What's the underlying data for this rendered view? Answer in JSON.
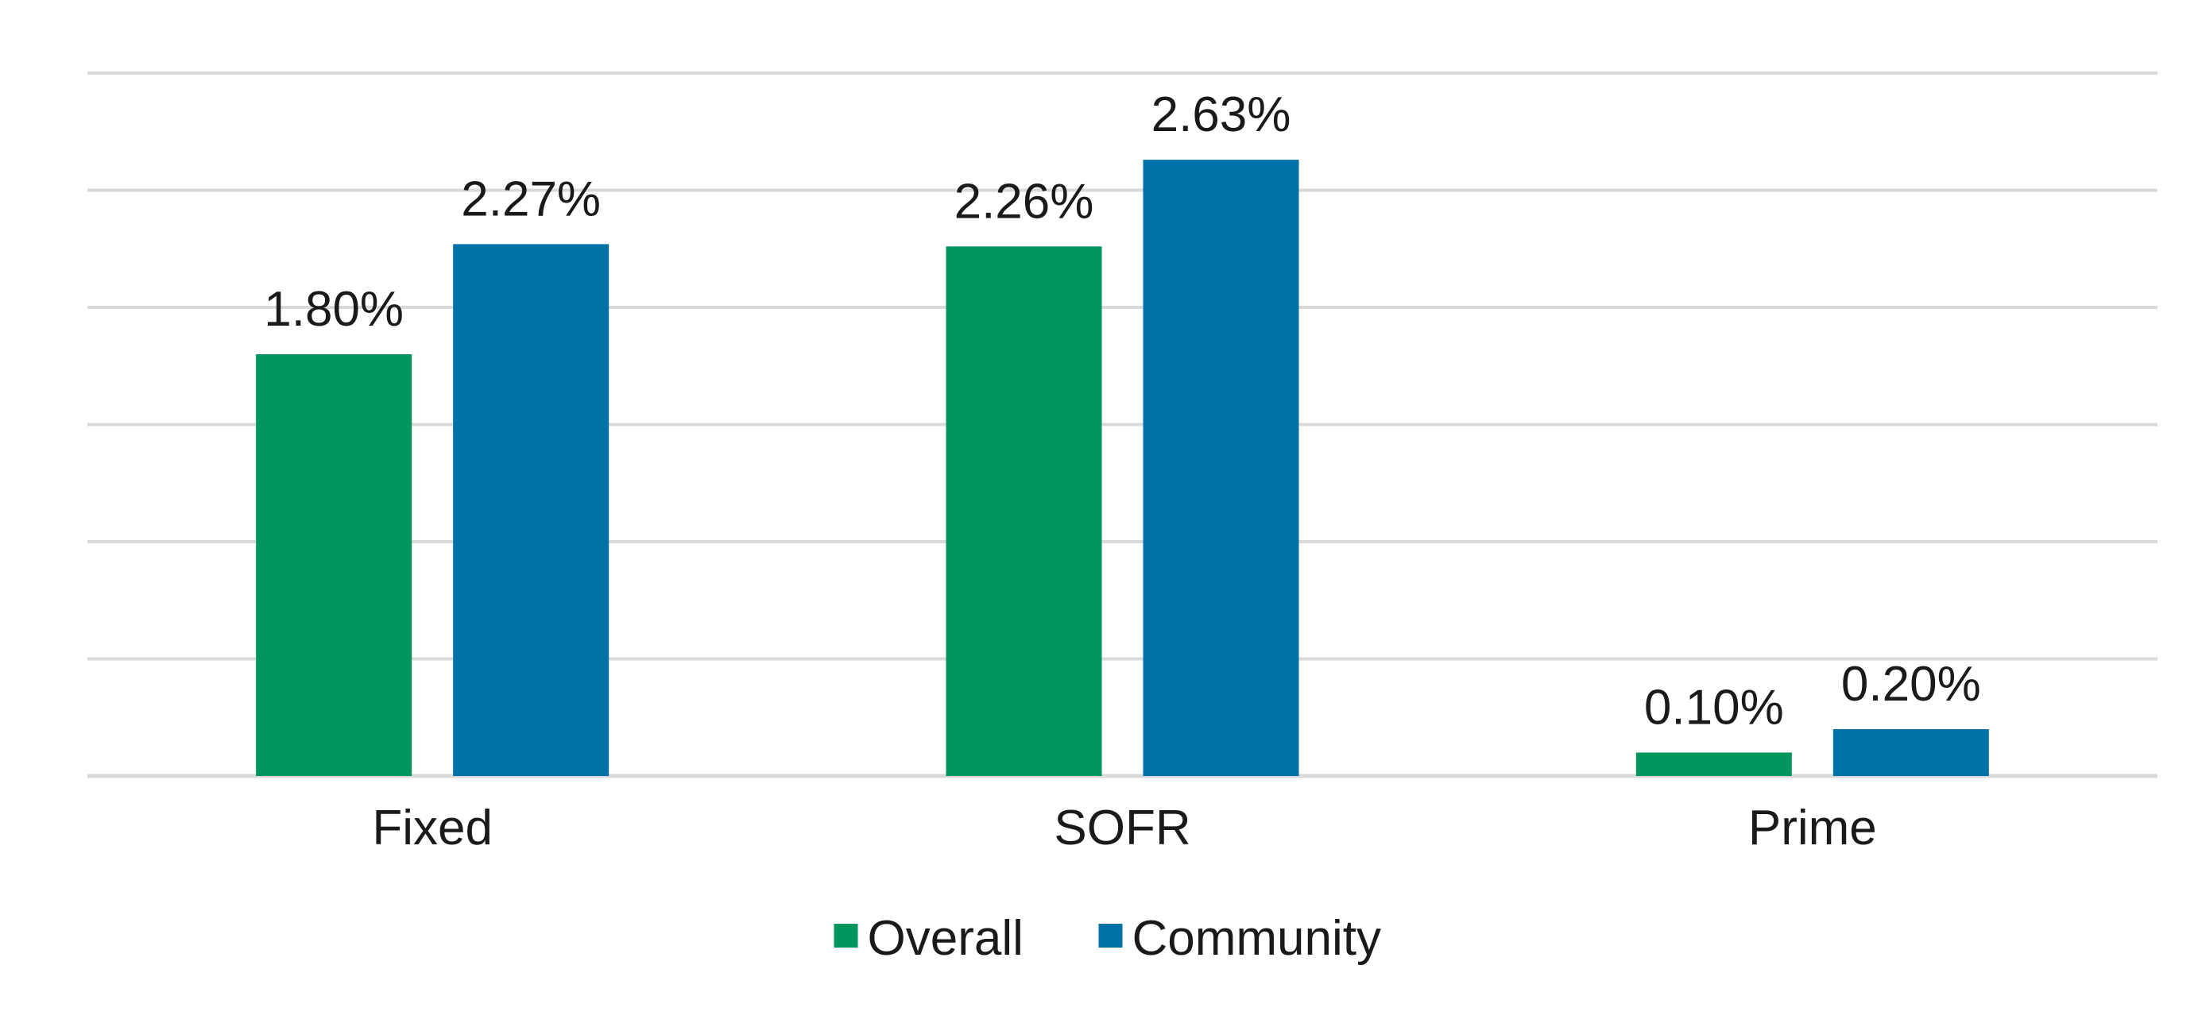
{
  "chart_data": {
    "type": "bar",
    "categories": [
      "Fixed",
      "SOFR",
      "Prime"
    ],
    "series": [
      {
        "name": "Overall",
        "values": [
          1.8,
          2.26,
          0.1
        ],
        "labels": [
          "1.80%",
          "2.26%",
          "0.10%"
        ],
        "color": "#00965e"
      },
      {
        "name": "Community",
        "values": [
          2.27,
          2.63,
          0.2
        ],
        "labels": [
          "2.27%",
          "2.63%",
          "0.20%"
        ],
        "color": "#0072a8"
      }
    ],
    "ylim": [
      0,
      3.0
    ],
    "grid": true,
    "legend_placement": "bottom-center",
    "title": "",
    "xlabel": "",
    "ylabel": ""
  }
}
